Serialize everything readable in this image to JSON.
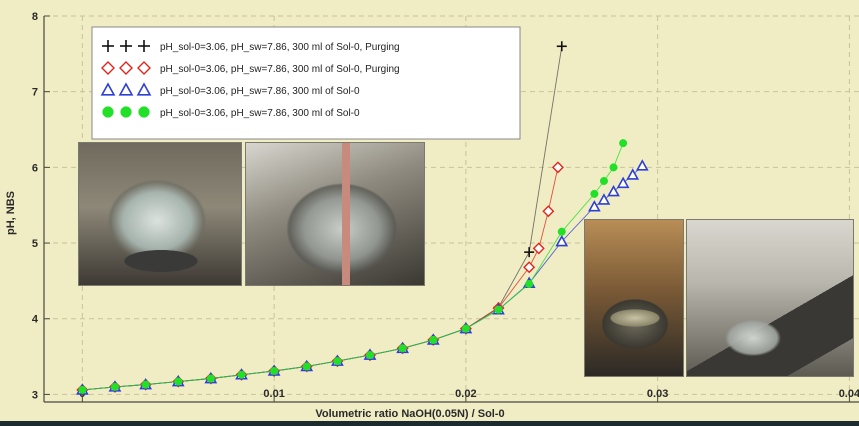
{
  "chart_data": {
    "type": "scatter",
    "title": "",
    "xlabel": "Volumetric ratio NaOH(0.05N)  /  Sol-0",
    "ylabel": "pH, NBS",
    "xlim": [
      -0.002,
      0.0405
    ],
    "ylim": [
      2.9,
      8.0
    ],
    "x_ticks": [
      0,
      0.01,
      0.02,
      0.03,
      0.04
    ],
    "x_tick_labels": [
      "0",
      "0.01",
      "0.02",
      "0.03",
      "0.04"
    ],
    "y_ticks": [
      3,
      4,
      5,
      6,
      7,
      8
    ],
    "y_tick_labels": [
      "3",
      "4",
      "5",
      "6",
      "7",
      "8"
    ],
    "grid": true,
    "legend_position": "top-left",
    "series": [
      {
        "name": "pH_sol-0=3.06, pH_sw=7.86, 300 ml of Sol-0, Purging",
        "marker": "plus",
        "color": "#111111",
        "line": true,
        "x": [
          0,
          0.0017,
          0.0033,
          0.005,
          0.0067,
          0.0083,
          0.01,
          0.0117,
          0.0133,
          0.015,
          0.0167,
          0.0183,
          0.02,
          0.0217,
          0.0233,
          0.025
        ],
        "y": [
          3.06,
          3.1,
          3.13,
          3.17,
          3.21,
          3.26,
          3.31,
          3.37,
          3.44,
          3.52,
          3.61,
          3.72,
          3.87,
          4.15,
          4.88,
          7.6
        ]
      },
      {
        "name": "pH_sol-0=3.06, pH_sw=7.86, 300 ml of Sol-0, Purging",
        "marker": "diamond-open",
        "color": "#e0261c",
        "line": true,
        "x": [
          0,
          0.0017,
          0.0033,
          0.005,
          0.0067,
          0.0083,
          0.01,
          0.0117,
          0.0133,
          0.015,
          0.0167,
          0.0183,
          0.02,
          0.0217,
          0.0233,
          0.0238,
          0.0243,
          0.0248
        ],
        "y": [
          3.06,
          3.1,
          3.13,
          3.17,
          3.21,
          3.26,
          3.31,
          3.37,
          3.44,
          3.52,
          3.61,
          3.72,
          3.87,
          4.14,
          4.68,
          4.93,
          5.42,
          6.0
        ]
      },
      {
        "name": "pH_sol-0=3.06, pH_sw=7.86, 300 ml of Sol-0",
        "marker": "triangle-open",
        "color": "#2c3fd6",
        "line": true,
        "x": [
          0,
          0.0017,
          0.0033,
          0.005,
          0.0067,
          0.0083,
          0.01,
          0.0117,
          0.0133,
          0.015,
          0.0167,
          0.0183,
          0.02,
          0.0217,
          0.0233,
          0.025,
          0.0267,
          0.0272,
          0.0277,
          0.0282,
          0.0287,
          0.0292
        ],
        "y": [
          3.06,
          3.1,
          3.13,
          3.17,
          3.21,
          3.26,
          3.31,
          3.37,
          3.44,
          3.52,
          3.61,
          3.72,
          3.87,
          4.12,
          4.47,
          5.02,
          5.48,
          5.57,
          5.68,
          5.79,
          5.9,
          6.02
        ]
      },
      {
        "name": "pH_sol-0=3.06, pH_sw=7.86, 300 ml of Sol-0",
        "marker": "circle-filled",
        "color": "#22e027",
        "line": true,
        "x": [
          0,
          0.0017,
          0.0033,
          0.005,
          0.0067,
          0.0083,
          0.01,
          0.0117,
          0.0133,
          0.015,
          0.0167,
          0.0183,
          0.02,
          0.0217,
          0.0233,
          0.025,
          0.0267,
          0.0272,
          0.0277,
          0.0282
        ],
        "y": [
          3.06,
          3.1,
          3.13,
          3.17,
          3.21,
          3.26,
          3.31,
          3.37,
          3.44,
          3.52,
          3.61,
          3.72,
          3.87,
          4.12,
          4.46,
          5.15,
          5.65,
          5.82,
          6.0,
          6.32
        ]
      }
    ]
  },
  "colors": {
    "plot_background": "#f0ecc4",
    "grid": "#c9c29a",
    "frame": "#4a4a40"
  }
}
